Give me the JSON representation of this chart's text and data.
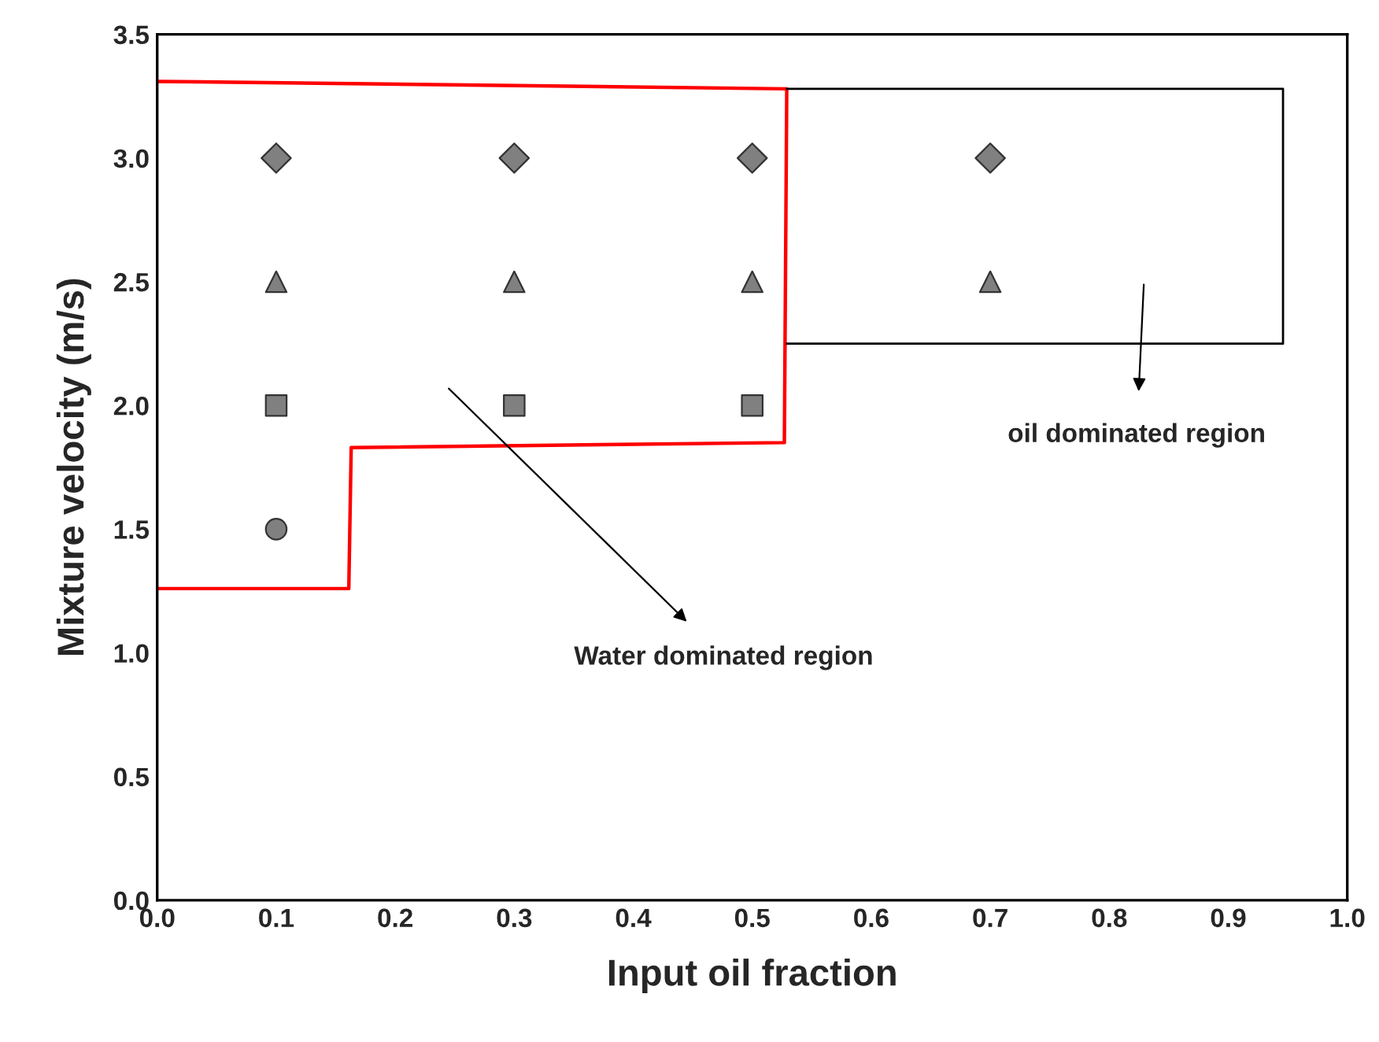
{
  "chart_data": {
    "type": "scatter",
    "xlabel": "Input oil fraction",
    "ylabel": "Mixture velocity (m/s)",
    "xlim": [
      0,
      1
    ],
    "ylim": [
      0,
      3.5
    ],
    "xticks": [
      {
        "value": 0,
        "label": "0.0"
      },
      {
        "value": 0.1,
        "label": "0.1"
      },
      {
        "value": 0.2,
        "label": "0.2"
      },
      {
        "value": 0.3,
        "label": "0.3"
      },
      {
        "value": 0.4,
        "label": "0.4"
      },
      {
        "value": 0.5,
        "label": "0.5"
      },
      {
        "value": 0.6,
        "label": "0.6"
      },
      {
        "value": 0.7,
        "label": "0.7"
      },
      {
        "value": 0.8,
        "label": "0.8"
      },
      {
        "value": 0.9,
        "label": "0.9"
      },
      {
        "value": 1,
        "label": "1.0"
      }
    ],
    "yticks": [
      {
        "value": 0,
        "label": "0.0"
      },
      {
        "value": 0.5,
        "label": "0.5"
      },
      {
        "value": 1,
        "label": "1.0"
      },
      {
        "value": 1.5,
        "label": "1.5"
      },
      {
        "value": 2,
        "label": "2.0"
      },
      {
        "value": 2.5,
        "label": "2.5"
      },
      {
        "value": 3,
        "label": "3.0"
      },
      {
        "value": 3.5,
        "label": "3.5"
      }
    ],
    "grid": false,
    "legend": false,
    "series": [
      {
        "marker": "circle",
        "color": "#808080",
        "x": [
          0.1
        ],
        "values": [
          1.5
        ]
      },
      {
        "marker": "square",
        "color": "#808080",
        "x": [
          0.1,
          0.3,
          0.5
        ],
        "values": [
          2.0,
          2.0,
          2.0
        ]
      },
      {
        "marker": "triangle",
        "color": "#808080",
        "x": [
          0.1,
          0.3,
          0.5,
          0.7
        ],
        "values": [
          2.5,
          2.5,
          2.5,
          2.5
        ]
      },
      {
        "marker": "diamond",
        "color": "#808080",
        "x": [
          0.1,
          0.3,
          0.5,
          0.7
        ],
        "values": [
          3.0,
          3.0,
          3.0,
          3.0
        ]
      },
      {
        "type": "line",
        "marker": "none",
        "line_style": "solid",
        "color": "#ff0000",
        "x": [
          0,
          0.161,
          0.163,
          0.527,
          0.529,
          0
        ],
        "values": [
          1.26,
          1.26,
          1.83,
          1.85,
          3.28,
          3.31
        ]
      },
      {
        "type": "line",
        "marker": "none",
        "line_style": "solid",
        "color": "#000000",
        "x": [
          0.529,
          0.946,
          0.946,
          0.529
        ],
        "values": [
          3.28,
          3.28,
          2.25,
          2.25
        ]
      }
    ],
    "annotations": [
      "Water dominated region",
      "oil dominated region"
    ]
  }
}
